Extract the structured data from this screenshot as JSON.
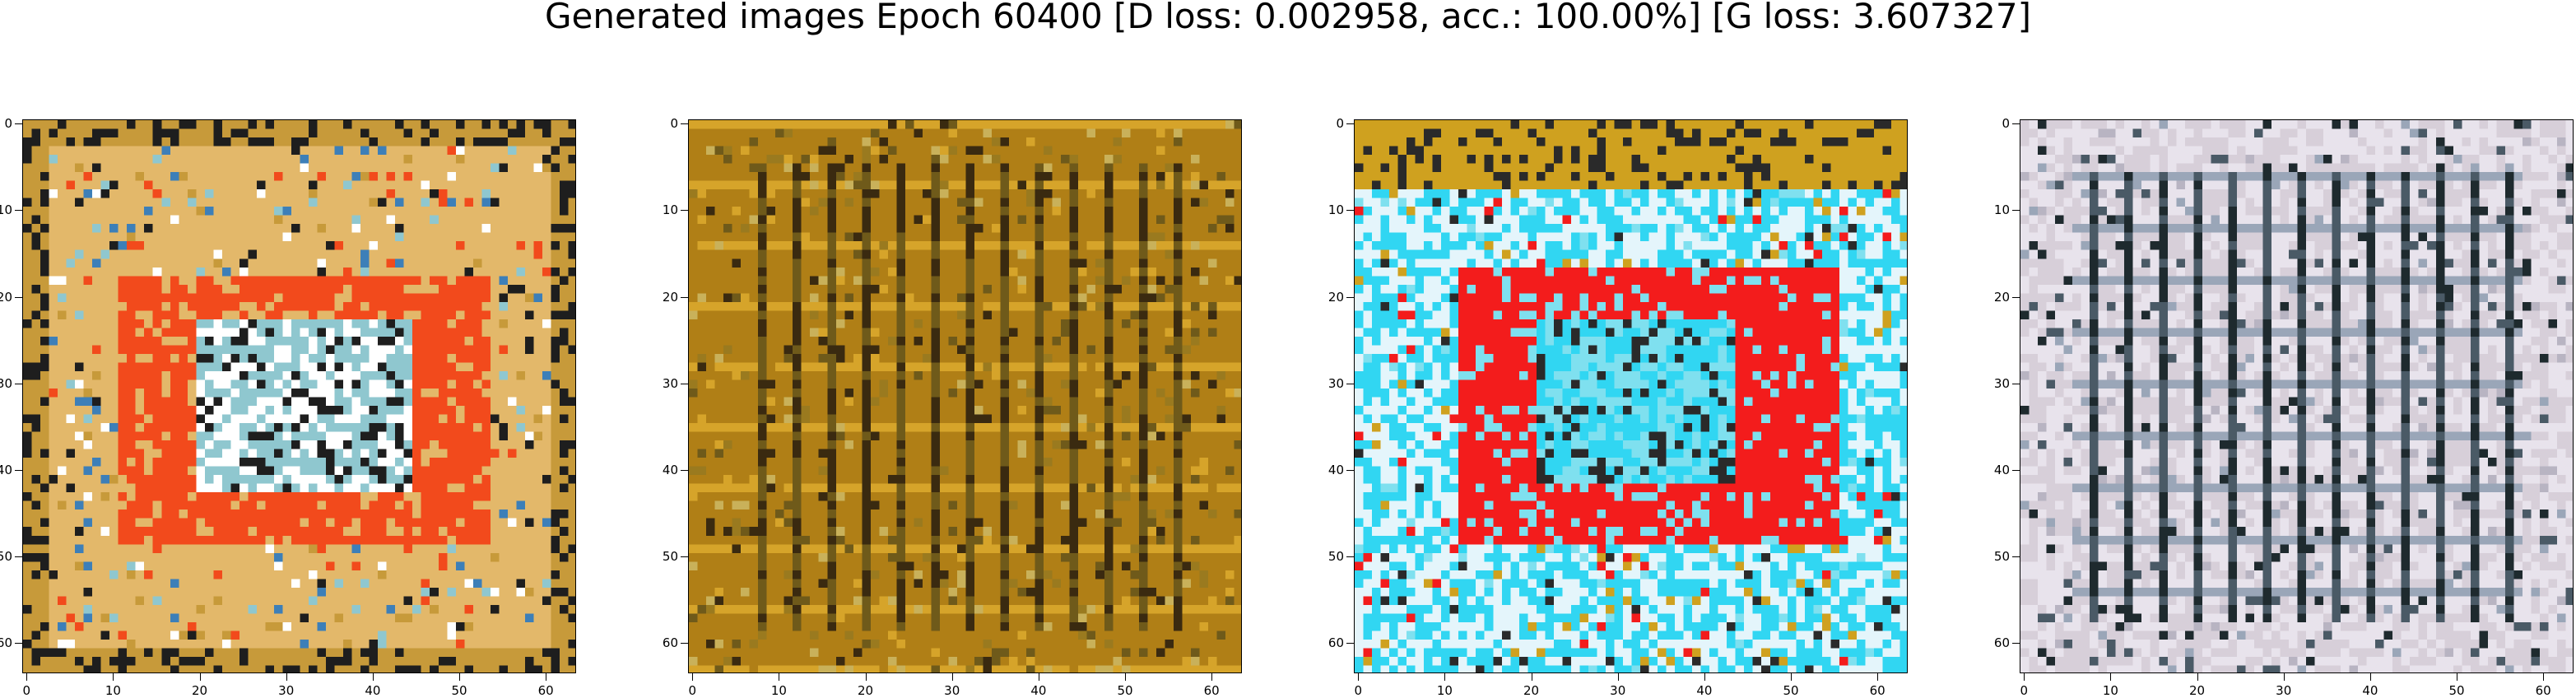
{
  "title": "Generated images Epoch 60400 [D loss: 0.002958, acc.: 100.00%] [G loss: 3.607327]",
  "panels": [
    {
      "name": "generated-image-1",
      "palette": [
        "#c79a3a",
        "#e3b86a",
        "#f24a1c",
        "#8fc7cf",
        "#ffffff",
        "#1e1e1e",
        "#3d7fb8"
      ],
      "motif": "red-frame-warm"
    },
    {
      "name": "generated-image-2",
      "palette": [
        "#b07f16",
        "#9a7a1f",
        "#d6a42a",
        "#6f5a1a",
        "#3a2a10",
        "#c9b15a"
      ],
      "motif": "vertical-stripes-ochre"
    },
    {
      "name": "generated-image-3",
      "palette": [
        "#f31c1c",
        "#31d6f2",
        "#e4f5fb",
        "#cfa11f",
        "#2a2a2a",
        "#7fe0ef"
      ],
      "motif": "red-frame-cyan"
    },
    {
      "name": "generated-image-4",
      "palette": [
        "#e8e3ec",
        "#b8b4c2",
        "#4a5a66",
        "#d7cfd9",
        "#1e2a2e",
        "#9aa6b8"
      ],
      "motif": "grey-grid"
    }
  ],
  "axes": {
    "xticks": [
      "0",
      "10",
      "20",
      "30",
      "40",
      "50",
      "60"
    ],
    "yticks": [
      "0",
      "10",
      "20",
      "30",
      "40",
      "50",
      "60"
    ]
  }
}
